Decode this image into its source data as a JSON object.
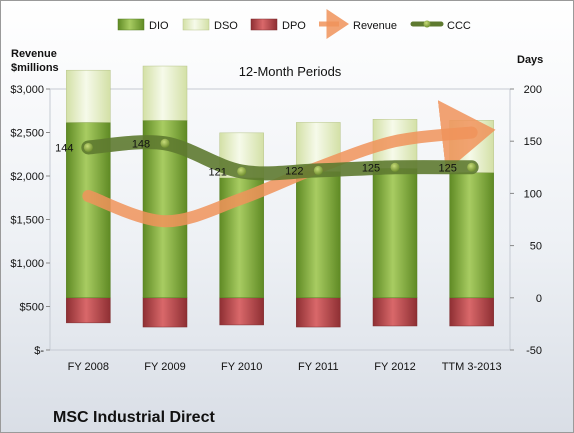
{
  "chart_data": {
    "type": "bar",
    "title": "12-Month Periods",
    "company": "MSC Industrial Direct",
    "left_axis": {
      "title_line1": "Revenue",
      "title_line2": "$millions",
      "ticks": [
        "$-",
        "$500",
        "$1,000",
        "$1,500",
        "$2,000",
        "$2,500",
        "$3,000"
      ],
      "range": [
        0,
        3000
      ]
    },
    "right_axis": {
      "title": "Days",
      "ticks": [
        "-50",
        "0",
        "50",
        "100",
        "150",
        "200"
      ],
      "range": [
        -50,
        200
      ]
    },
    "categories": [
      "FY 2008",
      "FY 2009",
      "FY 2010",
      "FY 2011",
      "FY 2012",
      "TTM 3-2013"
    ],
    "series": [
      {
        "name": "DIO",
        "axis": "days",
        "values": [
          168,
          170,
          115,
          121,
          124,
          120
        ]
      },
      {
        "name": "DSO",
        "axis": "days",
        "values": [
          50,
          52,
          43,
          47,
          47,
          50
        ]
      },
      {
        "name": "DPO",
        "axis": "days",
        "values": [
          -24,
          -28,
          -26,
          -28,
          -27,
          -27
        ]
      },
      {
        "name": "Revenue",
        "axis": "revenue",
        "values": [
          1770,
          1480,
          1740,
          2100,
          2400,
          2500
        ]
      },
      {
        "name": "CCC",
        "axis": "days",
        "values": [
          144,
          148,
          121,
          122,
          125,
          125
        ]
      }
    ],
    "ccc_labels": [
      "144",
      "148",
      "121",
      "122",
      "125",
      "125"
    ],
    "legend": [
      "DIO",
      "DSO",
      "DPO",
      "Revenue",
      "CCC"
    ],
    "legend_position": "top",
    "colors": {
      "DIO": "#7fa63a",
      "DSO": "#e6efc8",
      "DPO": "#b8474a",
      "Revenue": "#f0935a",
      "CCC": "#5e7a30"
    }
  }
}
